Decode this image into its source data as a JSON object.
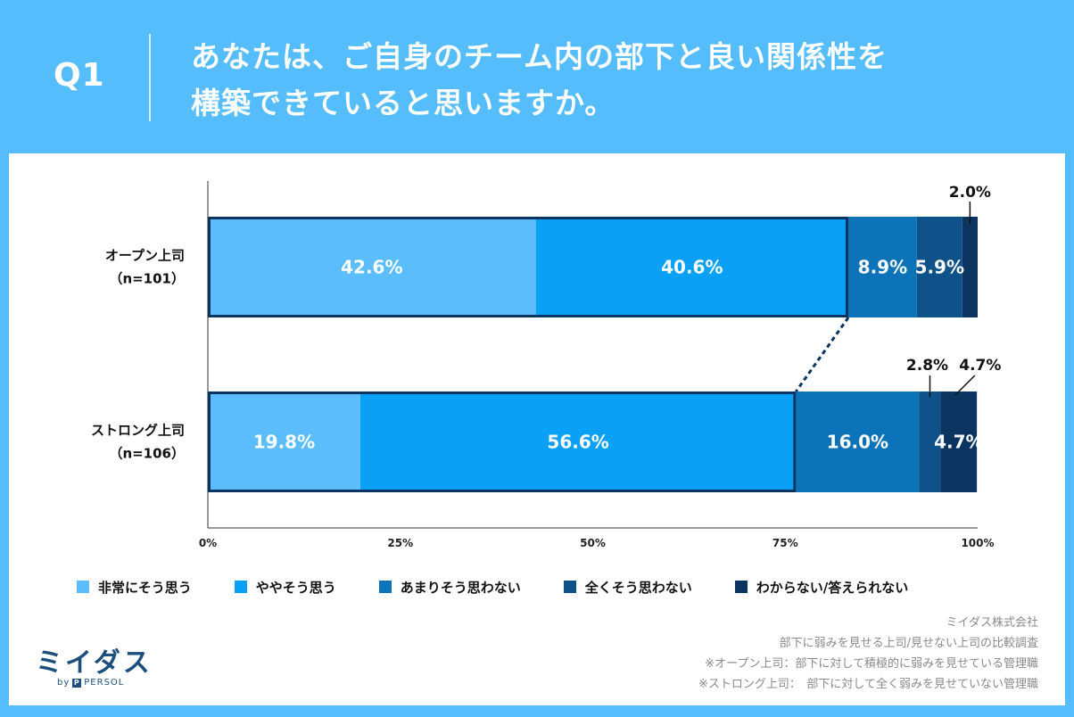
{
  "header": {
    "q_label": "Q1",
    "title_line1": "あなたは、ご自身のチーム内の部下と良い関係性を",
    "title_line2": "構築できていると思いますか。"
  },
  "colors": {
    "background": "#56bdfc",
    "cat1": "#5bbdfc",
    "cat2": "#0aa0f5",
    "cat3": "#0c73b8",
    "cat4": "#0f5289",
    "cat5": "#0b3461",
    "outline": "#0b3461"
  },
  "chart_data": {
    "type": "bar",
    "orientation": "horizontal-stacked-100",
    "categories": [
      "非常にそう思う",
      "ややそう思う",
      "あまりそう思わない",
      "全くそう思わない",
      "わからない/答えられない"
    ],
    "rows": [
      {
        "label_line1": "オープン上司",
        "label_line2": "（n=101）",
        "values": [
          42.6,
          40.6,
          8.9,
          5.9,
          2.0
        ],
        "value_labels": [
          "42.6%",
          "40.6%",
          "8.9%",
          "5.9%",
          "2.0%"
        ]
      },
      {
        "label_line1": "ストロング上司",
        "label_line2": "（n=106）",
        "values": [
          19.8,
          56.6,
          16.0,
          2.8,
          4.7
        ],
        "value_labels": [
          "19.8%",
          "56.6%",
          "16.0%",
          "2.8%",
          "4.7%"
        ]
      }
    ],
    "xlim": [
      0,
      100
    ],
    "ticks": [
      0,
      25,
      50,
      75,
      100
    ],
    "tick_labels": [
      "0%",
      "25%",
      "50%",
      "75%",
      "100%"
    ],
    "legend_position": "bottom"
  },
  "footer": {
    "note1": "ミイダス株式会社",
    "note2": "部下に弱みを見せる上司/見せない上司の比較調査",
    "note3": "※オープン上司：部下に対して積極的に弱みを見せている管理職",
    "note4": "※ストロング上司：　部下に対して全く弱みを見せていない管理職"
  },
  "logo": {
    "brand": "ミイダス",
    "by": "by",
    "p_mark": "P",
    "company": "PERSOL"
  }
}
